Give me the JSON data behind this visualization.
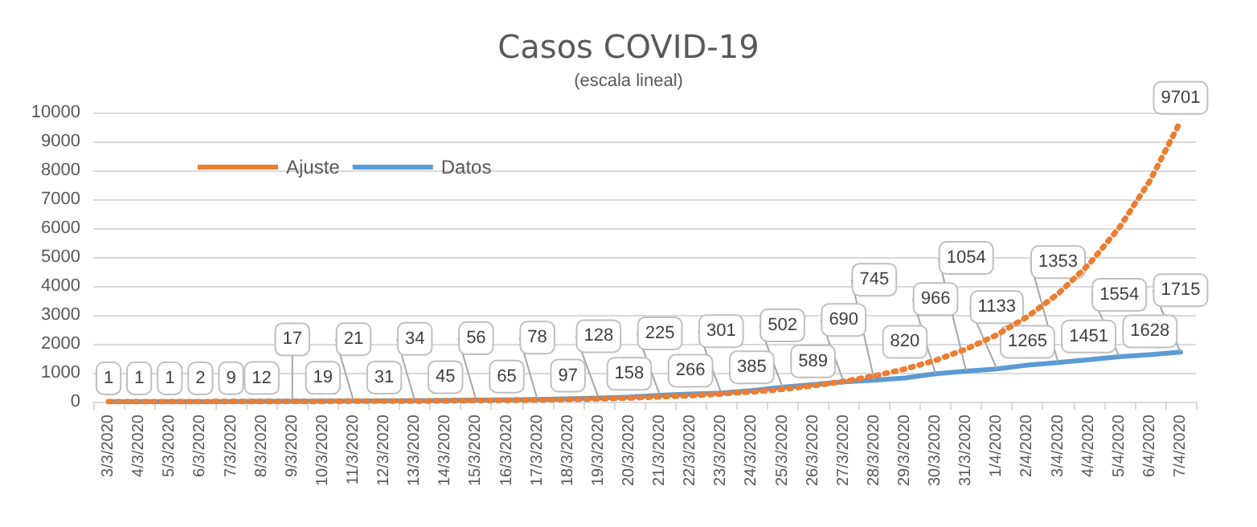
{
  "chart_data": {
    "type": "line",
    "title": "Casos COVID-19",
    "subtitle": "(escala lineal)",
    "categories": [
      "3/3/2020",
      "4/3/2020",
      "5/3/2020",
      "6/3/2020",
      "7/3/2020",
      "8/3/2020",
      "9/3/2020",
      "10/3/2020",
      "11/3/2020",
      "12/3/2020",
      "13/3/2020",
      "14/3/2020",
      "15/3/2020",
      "16/3/2020",
      "17/3/2020",
      "18/3/2020",
      "19/3/2020",
      "20/3/2020",
      "21/3/2020",
      "22/3/2020",
      "23/3/2020",
      "24/3/2020",
      "25/3/2020",
      "26/3/2020",
      "27/3/2020",
      "28/3/2020",
      "29/3/2020",
      "30/3/2020",
      "31/3/2020",
      "1/4/2020",
      "2/4/2020",
      "3/4/2020",
      "4/4/2020",
      "5/4/2020",
      "6/4/2020",
      "7/4/2020"
    ],
    "series": [
      {
        "name": "Ajuste",
        "color": "#ed7d31",
        "line_style": "dotted",
        "values": [
          0,
          0,
          0,
          0,
          10,
          10,
          10,
          10,
          20,
          20,
          20,
          30,
          40,
          50,
          60,
          80,
          100,
          130,
          170,
          210,
          270,
          340,
          430,
          550,
          700,
          890,
          1130,
          1430,
          1820,
          2310,
          2940,
          3730,
          4740,
          6020,
          7640,
          9701
        ],
        "value_labels": [
          null,
          null,
          null,
          null,
          null,
          null,
          null,
          null,
          null,
          null,
          null,
          null,
          null,
          null,
          null,
          null,
          null,
          null,
          null,
          null,
          null,
          null,
          null,
          null,
          null,
          null,
          null,
          null,
          null,
          null,
          null,
          null,
          null,
          null,
          null,
          "9701"
        ]
      },
      {
        "name": "Datos",
        "color": "#5b9bd5",
        "line_style": "solid",
        "values": [
          1,
          1,
          1,
          2,
          9,
          12,
          17,
          19,
          21,
          31,
          34,
          45,
          56,
          65,
          78,
          97,
          128,
          158,
          225,
          266,
          301,
          385,
          502,
          589,
          690,
          745,
          820,
          966,
          1054,
          1133,
          1265,
          1353,
          1451,
          1554,
          1628,
          1715
        ],
        "value_labels": [
          "1",
          "1",
          "1",
          "2",
          "9",
          "12",
          "17",
          "19",
          "21",
          "31",
          "34",
          "45",
          "56",
          "65",
          "78",
          "97",
          "128",
          "158",
          "225",
          "266",
          "301",
          "385",
          "502",
          "589",
          "690",
          "745",
          "820",
          "966",
          "1054",
          "1133",
          "1265",
          "1353",
          "1451",
          "1554",
          "1628",
          "1715"
        ]
      }
    ],
    "ylim": [
      0,
      10000
    ],
    "yticks": [
      0,
      1000,
      2000,
      3000,
      4000,
      5000,
      6000,
      7000,
      8000,
      9000,
      10000
    ],
    "grid": "y",
    "legend": "top left",
    "marker": "none"
  }
}
